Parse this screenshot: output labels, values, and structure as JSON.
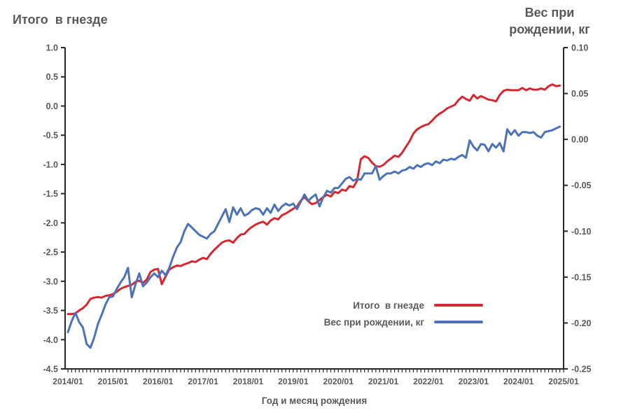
{
  "colors": {
    "red_series": "#d62630",
    "blue_series": "#4c72b8",
    "text": "#595959",
    "axis": "#262626",
    "background": "#ffffff"
  },
  "chart_data": {
    "type": "line",
    "title_left": "Итого  в гнезде",
    "title_right_lines": [
      "Вес при",
      "рождении, кг"
    ],
    "xlabel": "Год и месяц рождения",
    "x_start": "2014/01",
    "x_frequency": "monthly",
    "x_tick_labels": [
      "2014/01",
      "2015/01",
      "2016/01",
      "2017/01",
      "2018/01",
      "2019/01",
      "2020/01",
      "2021/01",
      "2022/01",
      "2023/01",
      "2024/01",
      "2025/01"
    ],
    "left_axis": {
      "title": "Итого  в гнезде",
      "max": 1.0,
      "min": -4.5,
      "step": 0.5,
      "ticks": [
        "1.0",
        "0.5",
        "0.0",
        "-0.5",
        "-1.0",
        "-1.5",
        "-2.0",
        "-2.5",
        "-3.0",
        "-3.5",
        "-4.0",
        "-4.5"
      ]
    },
    "right_axis": {
      "title": "Вес при рождении, кг",
      "max": 0.1,
      "min": -0.25,
      "step": 0.05,
      "ticks": [
        "0.10",
        "0.05",
        "0.00",
        "-0.05",
        "-0.10",
        "-0.15",
        "-0.20",
        "-0.25"
      ]
    },
    "grid": false,
    "legend_position": "inside-lower-right",
    "series": [
      {
        "name": "Итого  в гнезде",
        "axis": "left",
        "color": "#d62630",
        "values": [
          -3.56,
          -3.56,
          -3.55,
          -3.5,
          -3.46,
          -3.4,
          -3.3,
          -3.28,
          -3.27,
          -3.28,
          -3.25,
          -3.24,
          -3.22,
          -3.18,
          -3.13,
          -3.1,
          -3.08,
          -3.06,
          -3.01,
          -2.99,
          -3.03,
          -2.97,
          -2.84,
          -2.8,
          -2.79,
          -3.05,
          -2.92,
          -2.8,
          -2.76,
          -2.73,
          -2.74,
          -2.71,
          -2.69,
          -2.66,
          -2.67,
          -2.63,
          -2.6,
          -2.62,
          -2.53,
          -2.46,
          -2.4,
          -2.34,
          -2.31,
          -2.3,
          -2.34,
          -2.26,
          -2.2,
          -2.19,
          -2.12,
          -2.07,
          -2.03,
          -2.0,
          -1.98,
          -2.03,
          -1.96,
          -1.92,
          -1.94,
          -1.87,
          -1.84,
          -1.8,
          -1.76,
          -1.72,
          -1.62,
          -1.56,
          -1.63,
          -1.68,
          -1.66,
          -1.61,
          -1.56,
          -1.52,
          -1.55,
          -1.47,
          -1.49,
          -1.43,
          -1.45,
          -1.37,
          -1.39,
          -1.28,
          -0.91,
          -0.86,
          -0.89,
          -0.97,
          -1.03,
          -1.04,
          -1.01,
          -0.95,
          -0.9,
          -0.85,
          -0.87,
          -0.8,
          -0.7,
          -0.6,
          -0.47,
          -0.4,
          -0.36,
          -0.33,
          -0.31,
          -0.25,
          -0.18,
          -0.13,
          -0.09,
          -0.04,
          -0.01,
          0.02,
          0.1,
          0.16,
          0.12,
          0.09,
          0.19,
          0.13,
          0.17,
          0.14,
          0.11,
          0.1,
          0.08,
          0.19,
          0.26,
          0.28,
          0.27,
          0.27,
          0.27,
          0.31,
          0.27,
          0.3,
          0.28,
          0.28,
          0.3,
          0.28,
          0.34,
          0.37,
          0.34,
          0.35
        ]
      },
      {
        "name": "Вес при рождении, кг",
        "axis": "right",
        "color": "#4c72b8",
        "values": [
          -0.21,
          -0.198,
          -0.189,
          -0.199,
          -0.205,
          -0.223,
          -0.227,
          -0.216,
          -0.201,
          -0.191,
          -0.18,
          -0.172,
          -0.171,
          -0.163,
          -0.156,
          -0.15,
          -0.14,
          -0.172,
          -0.158,
          -0.146,
          -0.16,
          -0.156,
          -0.15,
          -0.146,
          -0.15,
          -0.143,
          -0.148,
          -0.14,
          -0.128,
          -0.118,
          -0.112,
          -0.1,
          -0.092,
          -0.096,
          -0.1,
          -0.104,
          -0.106,
          -0.108,
          -0.103,
          -0.1,
          -0.092,
          -0.084,
          -0.076,
          -0.09,
          -0.074,
          -0.082,
          -0.075,
          -0.083,
          -0.081,
          -0.077,
          -0.075,
          -0.076,
          -0.082,
          -0.075,
          -0.08,
          -0.071,
          -0.078,
          -0.073,
          -0.07,
          -0.072,
          -0.07,
          -0.076,
          -0.068,
          -0.06,
          -0.067,
          -0.063,
          -0.06,
          -0.073,
          -0.063,
          -0.056,
          -0.058,
          -0.053,
          -0.053,
          -0.048,
          -0.043,
          -0.041,
          -0.045,
          -0.043,
          -0.044,
          -0.037,
          -0.037,
          -0.037,
          -0.029,
          -0.044,
          -0.04,
          -0.037,
          -0.037,
          -0.035,
          -0.037,
          -0.034,
          -0.033,
          -0.03,
          -0.032,
          -0.028,
          -0.03,
          -0.027,
          -0.026,
          -0.028,
          -0.024,
          -0.026,
          -0.022,
          -0.023,
          -0.021,
          -0.022,
          -0.019,
          -0.017,
          -0.02,
          -0.001,
          -0.008,
          -0.012,
          -0.005,
          -0.006,
          -0.013,
          -0.005,
          -0.009,
          -0.004,
          -0.013,
          0.011,
          0.005,
          0.01,
          0.004,
          0.008,
          0.008,
          0.007,
          0.008,
          0.004,
          0.002,
          0.008,
          0.009,
          0.01,
          0.012,
          0.014
        ]
      }
    ]
  }
}
